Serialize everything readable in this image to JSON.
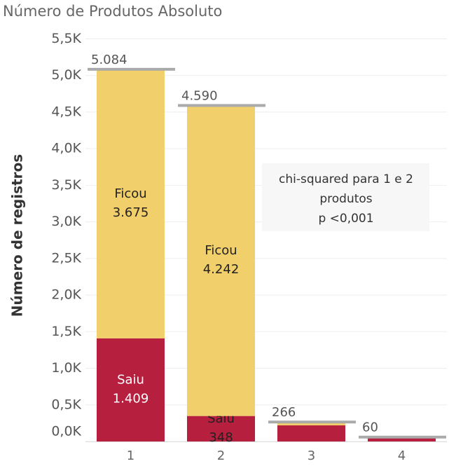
{
  "chart_data": {
    "type": "stacked-bar",
    "title": "Número de Produtos Absoluto",
    "y_label": "Número de registros",
    "categories": [
      "1",
      "2",
      "3",
      "4"
    ],
    "series": [
      {
        "name": "Saiu",
        "color": "#b61f3e",
        "values": [
          1409,
          348,
          220,
          60
        ],
        "value_labels": [
          "1.409",
          "348",
          null,
          null
        ]
      },
      {
        "name": "Ficou",
        "color": "#f1cf6a",
        "values": [
          3675,
          4242,
          46,
          0
        ],
        "value_labels": [
          "3.675",
          "4.242",
          null,
          null
        ]
      }
    ],
    "totals": {
      "values": [
        5084,
        4590,
        266,
        60
      ],
      "value_labels": [
        "5.084",
        "4.590",
        "266",
        "60"
      ]
    },
    "ylim": [
      0,
      5600
    ],
    "yticks": [
      {
        "value": 0,
        "label": "0,0K"
      },
      {
        "value": 500,
        "label": "0,5K"
      },
      {
        "value": 1000,
        "label": "1,0K"
      },
      {
        "value": 1500,
        "label": "1,5K"
      },
      {
        "value": 2000,
        "label": "2,0K"
      },
      {
        "value": 2500,
        "label": "2,5K"
      },
      {
        "value": 3000,
        "label": "3,0K"
      },
      {
        "value": 3500,
        "label": "3,5K"
      },
      {
        "value": 4000,
        "label": "4,0K"
      },
      {
        "value": 4500,
        "label": "4,5K"
      },
      {
        "value": 5000,
        "label": "5,0K"
      },
      {
        "value": 5500,
        "label": "5,5K"
      }
    ],
    "grid": true,
    "annotation": [
      "chi-squared para 1 e 2",
      "produtos",
      "p <0,001"
    ]
  }
}
